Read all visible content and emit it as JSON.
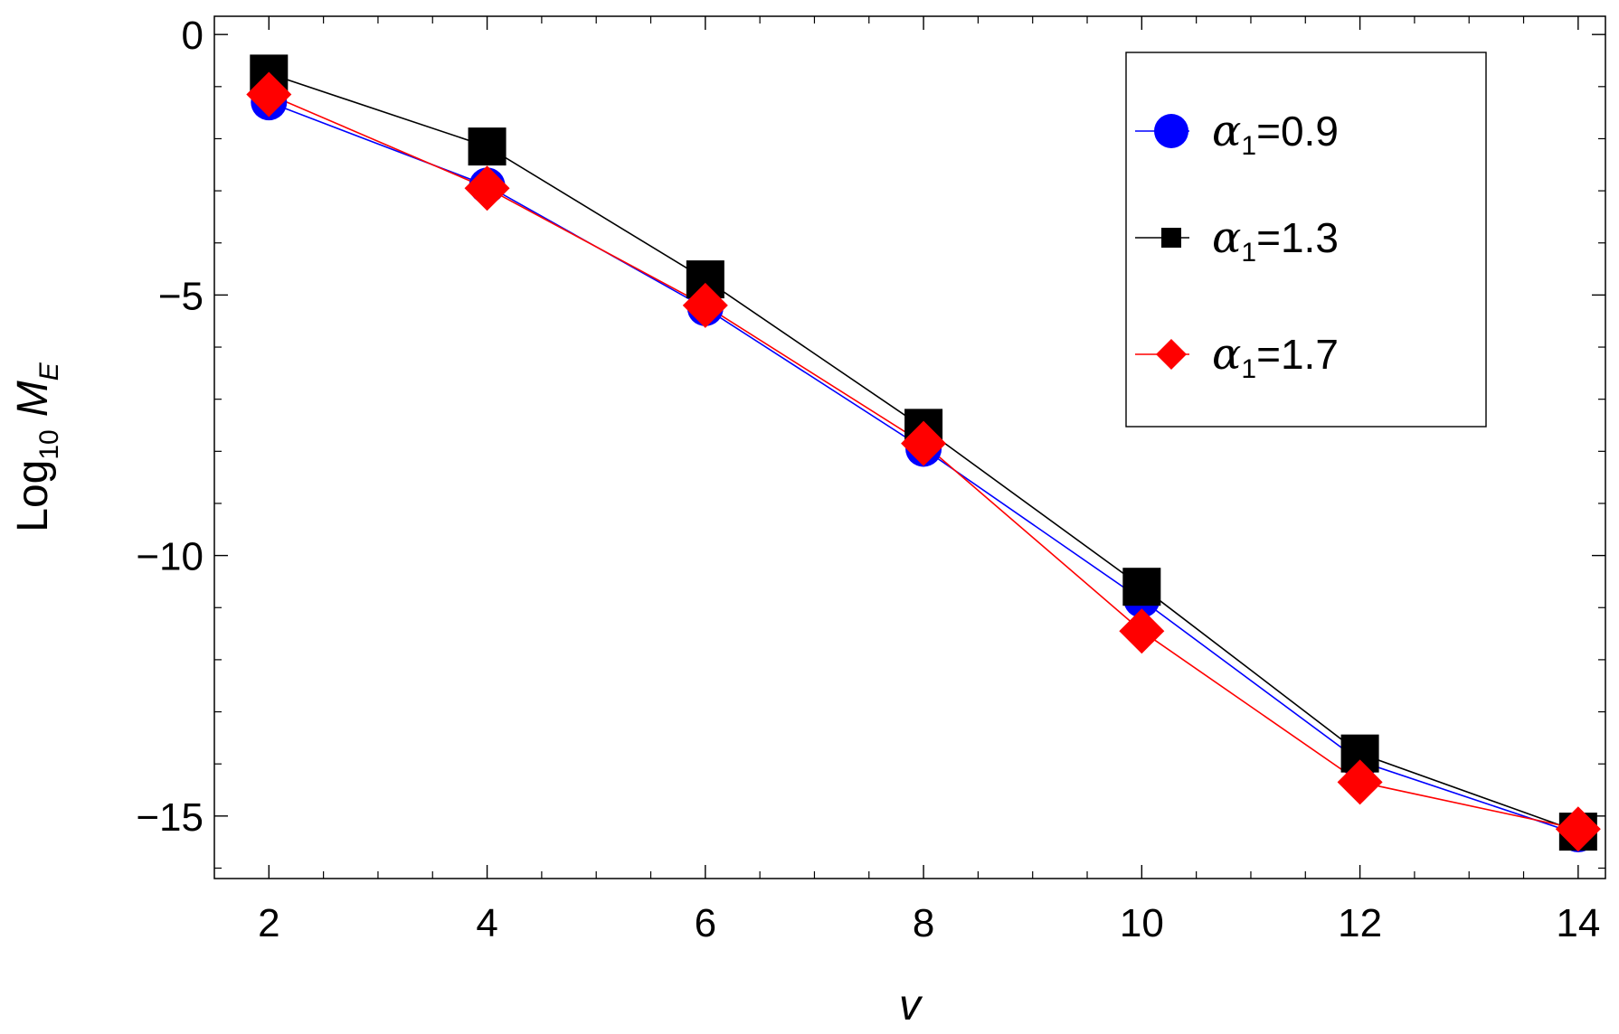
{
  "chart_data": {
    "type": "line",
    "x": [
      2,
      4,
      6,
      8,
      10,
      12,
      14
    ],
    "xlabel": "v",
    "ylabel_main": "Log",
    "ylabel_sub": "10",
    "ylabel_var": "M",
    "ylabel_var_sub": "E",
    "xlim": [
      1.5,
      14.25
    ],
    "ylim": [
      -16.2,
      0.35
    ],
    "xticks": [
      2,
      4,
      6,
      8,
      10,
      12,
      14
    ],
    "xtick_labels": [
      "2",
      "4",
      "6",
      "8",
      "10",
      "12",
      "14"
    ],
    "xminor_ticks": [
      2.5,
      3,
      3.5,
      4.5,
      5,
      5.5,
      6.5,
      7,
      7.5,
      8.5,
      9,
      9.5,
      10.5,
      11,
      11.5,
      12.5,
      13,
      13.5
    ],
    "yticks": [
      0,
      -5,
      -10,
      -15
    ],
    "ytick_labels": [
      "0",
      "−5",
      "−10",
      "−15"
    ],
    "yminor_ticks": [
      -1,
      -2,
      -3,
      -4,
      -6,
      -7,
      -8,
      -9,
      -11,
      -12,
      -13,
      -14,
      -16
    ],
    "grid": false,
    "legend_position": "top-right",
    "series": [
      {
        "name_symbol": "α",
        "name_sub": "1",
        "name_value": "=0.9",
        "color": "#0000ff",
        "marker": "circle",
        "values": [
          -1.3,
          -2.9,
          -5.25,
          -7.95,
          -10.85,
          -13.95,
          -15.35
        ]
      },
      {
        "name_symbol": "α",
        "name_sub": "1",
        "name_value": "=1.3",
        "color": "#000000",
        "marker": "square",
        "values": [
          -0.75,
          -2.15,
          -4.7,
          -7.55,
          -10.6,
          -13.8,
          -15.3
        ]
      },
      {
        "name_symbol": "α",
        "name_sub": "1",
        "name_value": "=1.7",
        "color": "#ff0000",
        "marker": "diamond",
        "values": [
          -1.15,
          -2.95,
          -5.2,
          -7.85,
          -11.45,
          -14.35,
          -15.25
        ]
      }
    ]
  }
}
